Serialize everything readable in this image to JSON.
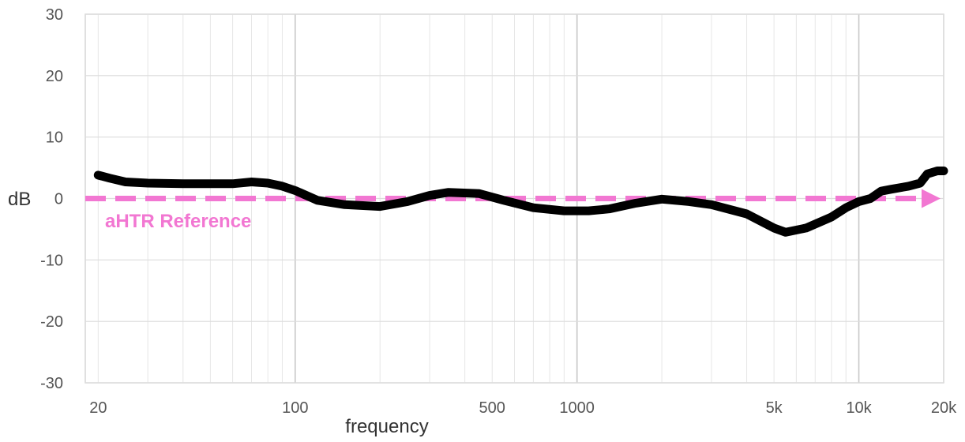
{
  "chart_data": {
    "type": "line",
    "title": "",
    "xlabel": "frequency",
    "ylabel": "dB",
    "x_scale": "log",
    "xlim": [
      18,
      20000
    ],
    "ylim": [
      -30,
      30
    ],
    "y_ticks": [
      30,
      20,
      10,
      0,
      -10,
      -20,
      -30
    ],
    "x_tick_labels": [
      {
        "value": 20,
        "label": "20"
      },
      {
        "value": 100,
        "label": "100"
      },
      {
        "value": 500,
        "label": "500"
      },
      {
        "value": 1000,
        "label": "1000"
      },
      {
        "value": 5000,
        "label": "5k"
      },
      {
        "value": 10000,
        "label": "10k"
      },
      {
        "value": 20000,
        "label": "20k"
      }
    ],
    "grid": true,
    "series": [
      {
        "name": "",
        "color": "#000000",
        "points": [
          [
            20,
            3.8
          ],
          [
            22,
            3.3
          ],
          [
            25,
            2.7
          ],
          [
            30,
            2.5
          ],
          [
            40,
            2.4
          ],
          [
            60,
            2.4
          ],
          [
            70,
            2.7
          ],
          [
            80,
            2.5
          ],
          [
            90,
            2.0
          ],
          [
            100,
            1.3
          ],
          [
            120,
            -0.3
          ],
          [
            150,
            -1.0
          ],
          [
            200,
            -1.3
          ],
          [
            250,
            -0.5
          ],
          [
            300,
            0.5
          ],
          [
            350,
            1.0
          ],
          [
            450,
            0.8
          ],
          [
            550,
            -0.3
          ],
          [
            700,
            -1.5
          ],
          [
            900,
            -2.0
          ],
          [
            1100,
            -2.0
          ],
          [
            1300,
            -1.7
          ],
          [
            1600,
            -0.8
          ],
          [
            2000,
            -0.1
          ],
          [
            2500,
            -0.5
          ],
          [
            3000,
            -1.0
          ],
          [
            4000,
            -2.5
          ],
          [
            5000,
            -4.8
          ],
          [
            5500,
            -5.5
          ],
          [
            6500,
            -4.8
          ],
          [
            8000,
            -3.0
          ],
          [
            9000,
            -1.5
          ],
          [
            10000,
            -0.5
          ],
          [
            11000,
            0.0
          ],
          [
            12000,
            1.2
          ],
          [
            13000,
            1.5
          ],
          [
            15000,
            2.0
          ],
          [
            16500,
            2.5
          ],
          [
            17500,
            4.0
          ],
          [
            19000,
            4.5
          ],
          [
            20000,
            4.5
          ]
        ]
      }
    ],
    "reference": {
      "label": "aHTR Reference",
      "value": 0,
      "color": "#f277d2",
      "style": "dashed-arrow"
    }
  }
}
